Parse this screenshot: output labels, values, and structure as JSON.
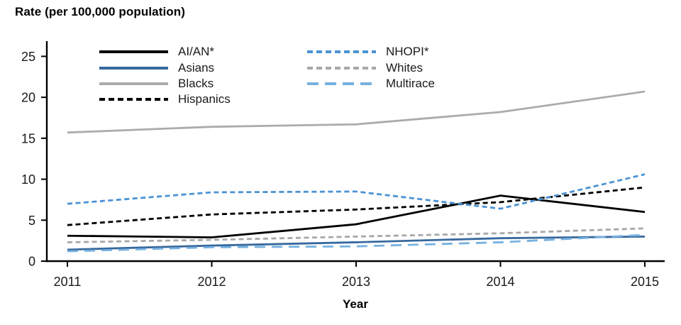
{
  "chart_data": {
    "type": "line",
    "title": "Rate (per 100,000 population)",
    "xlabel": "Year",
    "ylabel": "",
    "x": [
      2011,
      2012,
      2013,
      2014,
      2015
    ],
    "ylim": [
      0,
      25
    ],
    "y_ticks": [
      0,
      5,
      10,
      15,
      20,
      25
    ],
    "grid": false,
    "legend_position": "top inside plot, two columns",
    "axis_color": "#000000",
    "series": [
      {
        "name": "AI/AN*",
        "color": "#000000",
        "dash": "solid",
        "values": [
          3.1,
          2.9,
          4.5,
          8.0,
          6.0
        ]
      },
      {
        "name": "Asians",
        "color": "#37699E",
        "dash": "solid",
        "values": [
          1.4,
          1.9,
          2.3,
          2.8,
          3.0
        ]
      },
      {
        "name": "Blacks",
        "color": "#ABABAB",
        "dash": "solid",
        "values": [
          15.7,
          16.4,
          16.7,
          18.2,
          20.7
        ]
      },
      {
        "name": "Hispanics",
        "color": "#000000",
        "dash": "dashed",
        "values": [
          4.4,
          5.7,
          6.3,
          7.2,
          9.0
        ]
      },
      {
        "name": "NHOPI*",
        "color": "#4B92D4",
        "dash": "dashed",
        "values": [
          7.0,
          8.4,
          8.5,
          6.4,
          10.6
        ]
      },
      {
        "name": "Whites",
        "color": "#A8A8A8",
        "dash": "dashed",
        "values": [
          2.3,
          2.6,
          3.0,
          3.4,
          4.0
        ]
      },
      {
        "name": "Multirace",
        "color": "#76B1E0",
        "dash": "longdash",
        "values": [
          1.2,
          1.7,
          1.8,
          2.3,
          3.2
        ]
      }
    ]
  }
}
